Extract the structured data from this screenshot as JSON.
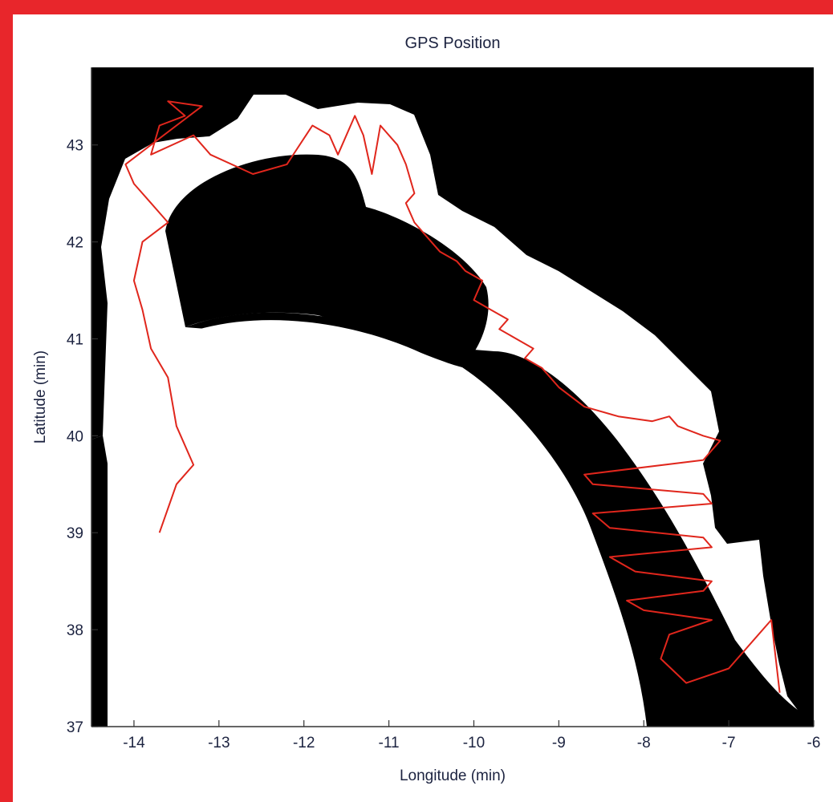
{
  "colors": {
    "frame": "#e8262b",
    "land": "#000000",
    "water": "#ffffff",
    "track": "#e0261c",
    "text": "#1c2340"
  },
  "chart_data": {
    "type": "line",
    "title": "GPS Position",
    "xlabel": "Longitude (min)",
    "ylabel": "Latitude (min)",
    "xlim": [
      -14.5,
      -6
    ],
    "ylim": [
      37,
      43.8
    ],
    "xticks": [
      -14,
      -13,
      -12,
      -11,
      -10,
      -9,
      -8,
      -7,
      -6
    ],
    "yticks": [
      37,
      38,
      39,
      40,
      41,
      42,
      43
    ],
    "grid": false,
    "series": [
      {
        "color": "#e0261c",
        "x": [
          -13.7,
          -13.6,
          -13.5,
          -13.4,
          -13.3,
          -13.5,
          -13.6,
          -13.8,
          -13.9,
          -14.0,
          -13.9,
          -13.6,
          -13.8,
          -14.0,
          -14.1,
          -13.8,
          -13.5,
          -13.2,
          -13.6,
          -13.4,
          -13.7,
          -13.8,
          -13.3,
          -13.1,
          -12.6,
          -12.2,
          -11.9,
          -11.7,
          -11.6,
          -11.4,
          -11.3,
          -11.2,
          -11.1,
          -10.9,
          -10.8,
          -10.7,
          -10.8,
          -10.7,
          -10.6,
          -10.4,
          -10.2,
          -10.1,
          -9.9,
          -10.0,
          -9.8,
          -9.6,
          -9.7,
          -9.5,
          -9.3,
          -9.4,
          -9.2,
          -9.0,
          -8.7,
          -8.3,
          -7.9,
          -7.7,
          -7.6,
          -7.3,
          -7.1,
          -7.2,
          -7.3,
          -8.7,
          -8.6,
          -7.3,
          -7.2,
          -8.6,
          -8.4,
          -7.3,
          -7.2,
          -8.4,
          -8.1,
          -7.2,
          -7.3,
          -8.2,
          -8.0,
          -7.2,
          -7.7,
          -7.8,
          -7.5,
          -7.0,
          -6.7,
          -6.5,
          -6.4
        ],
        "y": [
          39.0,
          39.25,
          39.5,
          39.6,
          39.7,
          40.1,
          40.6,
          40.9,
          41.3,
          41.6,
          42.0,
          42.2,
          42.4,
          42.6,
          42.8,
          43.0,
          43.2,
          43.4,
          43.45,
          43.3,
          43.2,
          42.9,
          43.1,
          42.9,
          42.7,
          42.8,
          43.2,
          43.1,
          42.9,
          43.3,
          43.1,
          42.7,
          43.2,
          43.0,
          42.8,
          42.5,
          42.4,
          42.2,
          42.1,
          41.9,
          41.8,
          41.7,
          41.6,
          41.4,
          41.3,
          41.2,
          41.1,
          41.0,
          40.9,
          40.8,
          40.7,
          40.5,
          40.3,
          40.2,
          40.15,
          40.2,
          40.1,
          40.0,
          39.95,
          39.85,
          39.75,
          39.6,
          39.5,
          39.4,
          39.3,
          39.2,
          39.05,
          38.95,
          38.85,
          38.75,
          38.6,
          38.5,
          38.4,
          38.3,
          38.2,
          38.1,
          37.95,
          37.7,
          37.45,
          37.6,
          37.9,
          38.1,
          37.35
        ]
      }
    ]
  }
}
